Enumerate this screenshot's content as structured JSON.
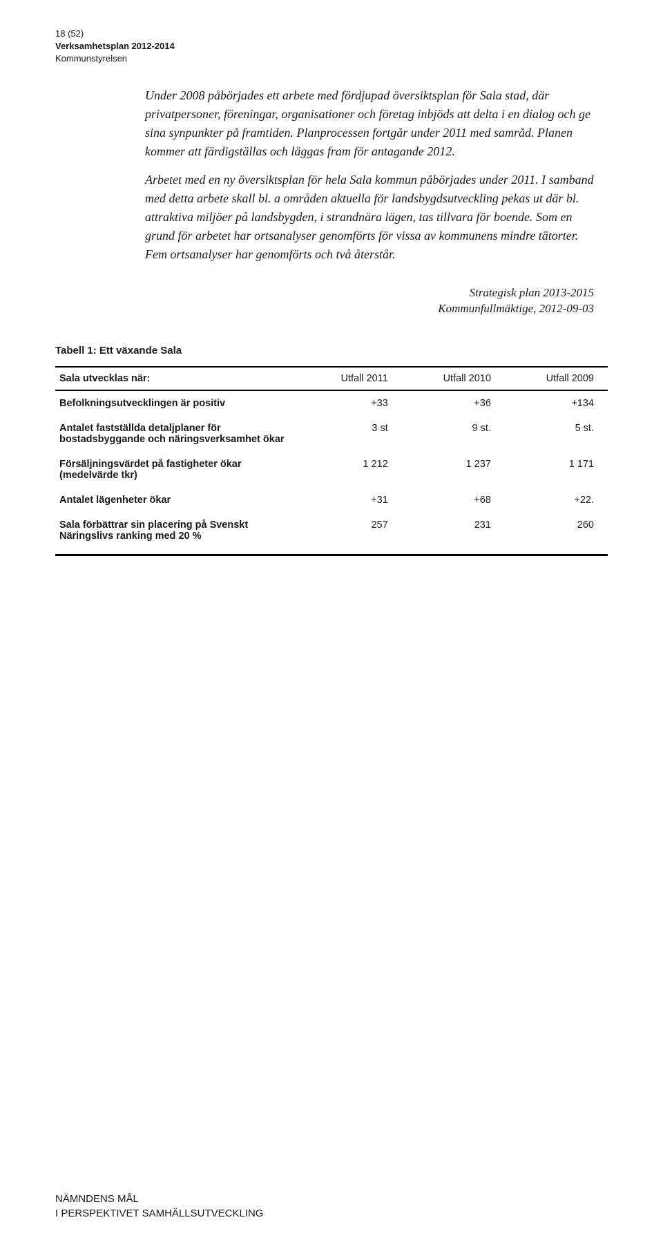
{
  "header": {
    "page_ref": "18 (52)",
    "doc_title": "Verksamhetsplan 2012-2014",
    "org": "Kommunstyrelsen"
  },
  "paragraphs": {
    "p1": "Under 2008 påbörjades ett arbete med fördjupad översiktsplan för Sala stad, där privatpersoner, föreningar, organisationer och företag inbjöds att delta i en dialog och ge sina synpunkter på framtiden. Planprocessen fortgår under 2011 med samråd. Planen kommer att färdigställas och läggas fram för antagande 2012.",
    "p2": "Arbetet med en ny översiktsplan för hela Sala kommun påbörjades under 2011. I samband med detta arbete skall bl. a områden aktuella för landsbygdsutveckling pekas ut där bl. attraktiva miljöer på landsbygden, i strandnära lägen, tas tillvara för boende. Som en grund för arbetet har ortsanalyser genomförts för vissa av kommunens mindre tätorter. Fem ortsanalyser har genomförts och två återstår."
  },
  "attribution": {
    "line1": "Strategisk plan 2013-2015",
    "line2": "Kommunfullmäktige, 2012-09-03"
  },
  "table": {
    "title": "Tabell 1: Ett växande Sala",
    "header": {
      "label": "Sala utvecklas när:",
      "c2011": "Utfall 2011",
      "c2010": "Utfall 2010",
      "c2009": "Utfall 2009"
    },
    "rows": [
      {
        "label": "Befolkningsutvecklingen är positiv",
        "v2011": "+33",
        "v2010": "+36",
        "v2009": "+134"
      },
      {
        "label": "Antalet fastställda detaljplaner för bostadsbyggande och näringsverksamhet ökar",
        "v2011": "3 st",
        "v2010": "9 st.",
        "v2009": "5 st."
      },
      {
        "label": "Försäljningsvärdet på fastigheter ökar (medelvärde tkr)",
        "v2011": "1 212",
        "v2010": "1 237",
        "v2009": "1 171"
      },
      {
        "label": "Antalet lägenheter ökar",
        "v2011": "+31",
        "v2010": "+68",
        "v2009": "+22."
      },
      {
        "label": "Sala förbättrar sin placering på Svenskt Näringslivs ranking med 20 %",
        "v2011": "257",
        "v2010": "231",
        "v2009": "260"
      }
    ]
  },
  "footer": {
    "line1": "NÄMNDENS MÅL",
    "line2": "I PERSPEKTIVET SAMHÄLLSUTVECKLING"
  }
}
